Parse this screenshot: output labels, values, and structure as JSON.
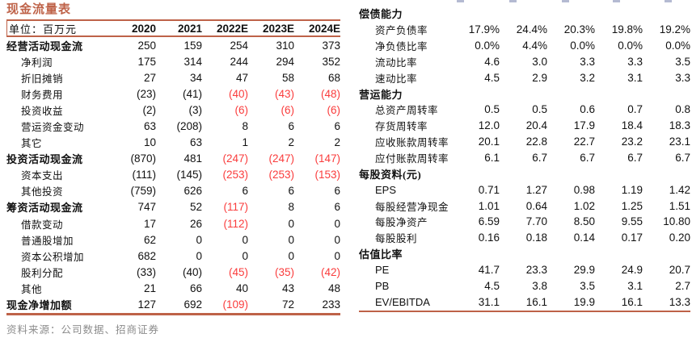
{
  "title": "现金流量表",
  "unit_label": "单位：百万元",
  "years": [
    "2020",
    "2021",
    "2022E",
    "2023E",
    "2024E"
  ],
  "left_table": {
    "rows": [
      {
        "label": "经营活动现金流",
        "bold": true,
        "values": [
          "250",
          "159",
          "254",
          "310",
          "373"
        ]
      },
      {
        "label": "净利润",
        "values": [
          "175",
          "314",
          "244",
          "294",
          "352"
        ]
      },
      {
        "label": "折旧摊销",
        "values": [
          "27",
          "34",
          "47",
          "58",
          "68"
        ]
      },
      {
        "label": "财务费用",
        "values": [
          "(23)",
          "(41)",
          "(40)",
          "(43)",
          "(48)"
        ],
        "red": [
          0,
          0,
          1,
          1,
          1
        ]
      },
      {
        "label": "投资收益",
        "values": [
          "(2)",
          "(3)",
          "(6)",
          "(6)",
          "(6)"
        ],
        "red": [
          0,
          0,
          1,
          1,
          1
        ]
      },
      {
        "label": "营运资金变动",
        "values": [
          "63",
          "(208)",
          "8",
          "6",
          "6"
        ]
      },
      {
        "label": "其它",
        "values": [
          "10",
          "63",
          "1",
          "2",
          "2"
        ]
      },
      {
        "label": "投资活动现金流",
        "bold": true,
        "values": [
          "(870)",
          "481",
          "(247)",
          "(247)",
          "(147)"
        ],
        "red": [
          0,
          0,
          1,
          1,
          1
        ]
      },
      {
        "label": "资本支出",
        "values": [
          "(111)",
          "(145)",
          "(253)",
          "(253)",
          "(153)"
        ],
        "red": [
          0,
          0,
          1,
          1,
          1
        ]
      },
      {
        "label": "其他投资",
        "values": [
          "(759)",
          "626",
          "6",
          "6",
          "6"
        ]
      },
      {
        "label": "筹资活动现金流",
        "bold": true,
        "values": [
          "747",
          "52",
          "(117)",
          "8",
          "6"
        ],
        "red": [
          0,
          0,
          1,
          0,
          0
        ]
      },
      {
        "label": "借款变动",
        "values": [
          "17",
          "26",
          "(112)",
          "0",
          "0"
        ],
        "red": [
          0,
          0,
          1,
          0,
          0
        ]
      },
      {
        "label": "普通股增加",
        "values": [
          "62",
          "0",
          "0",
          "0",
          "0"
        ]
      },
      {
        "label": "资本公积增加",
        "values": [
          "682",
          "0",
          "0",
          "0",
          "0"
        ]
      },
      {
        "label": "股利分配",
        "values": [
          "(33)",
          "(40)",
          "(45)",
          "(35)",
          "(42)"
        ],
        "red": [
          0,
          0,
          1,
          1,
          1
        ]
      },
      {
        "label": "其他",
        "values": [
          "21",
          "66",
          "40",
          "43",
          "48"
        ]
      },
      {
        "label": "现金净增加额",
        "bold": true,
        "values": [
          "127",
          "692",
          "(109)",
          "72",
          "233"
        ],
        "red": [
          0,
          0,
          1,
          0,
          0
        ]
      }
    ]
  },
  "right_table": {
    "rows": [
      {
        "label": "偿债能力",
        "section": true
      },
      {
        "label": "资产负债率",
        "values": [
          "17.9%",
          "24.4%",
          "20.3%",
          "19.8%",
          "19.2%"
        ]
      },
      {
        "label": "净负债比率",
        "values": [
          "0.0%",
          "4.4%",
          "0.0%",
          "0.0%",
          "0.0%"
        ]
      },
      {
        "label": "流动比率",
        "values": [
          "4.6",
          "3.0",
          "3.3",
          "3.3",
          "3.5"
        ]
      },
      {
        "label": "速动比率",
        "values": [
          "4.5",
          "2.9",
          "3.2",
          "3.1",
          "3.3"
        ]
      },
      {
        "label": "营运能力",
        "section": true
      },
      {
        "label": "总资产周转率",
        "values": [
          "0.5",
          "0.5",
          "0.6",
          "0.7",
          "0.8"
        ]
      },
      {
        "label": "存货周转率",
        "values": [
          "12.0",
          "20.4",
          "17.9",
          "18.4",
          "18.3"
        ]
      },
      {
        "label": "应收账款周转率",
        "values": [
          "20.1",
          "22.8",
          "22.7",
          "23.2",
          "23.1"
        ]
      },
      {
        "label": "应付账款周转率",
        "values": [
          "6.1",
          "6.7",
          "6.7",
          "6.7",
          "6.7"
        ]
      },
      {
        "label": "每股资料(元)",
        "section": true
      },
      {
        "label": "EPS",
        "values": [
          "0.71",
          "1.27",
          "0.98",
          "1.19",
          "1.42"
        ]
      },
      {
        "label": "每股经营净现金",
        "values": [
          "1.01",
          "0.64",
          "1.02",
          "1.25",
          "1.51"
        ]
      },
      {
        "label": "每股净资产",
        "values": [
          "6.59",
          "7.70",
          "8.50",
          "9.55",
          "10.80"
        ]
      },
      {
        "label": "每股股利",
        "values": [
          "0.16",
          "0.18",
          "0.14",
          "0.17",
          "0.20"
        ]
      },
      {
        "label": "估值比率",
        "section": true
      },
      {
        "label": "PE",
        "values": [
          "41.7",
          "23.3",
          "29.9",
          "24.9",
          "20.7"
        ]
      },
      {
        "label": "PB",
        "values": [
          "4.5",
          "3.8",
          "3.5",
          "3.1",
          "2.7"
        ]
      },
      {
        "label": "EV/EBITDA",
        "values": [
          "31.1",
          "16.1",
          "19.9",
          "16.1",
          "13.3"
        ]
      }
    ]
  },
  "source": "资料来源：公司数据、招商证券",
  "colors": {
    "accent": "#BE6248",
    "negative": "#FA3C3C",
    "muted": "#8C8C8C"
  }
}
